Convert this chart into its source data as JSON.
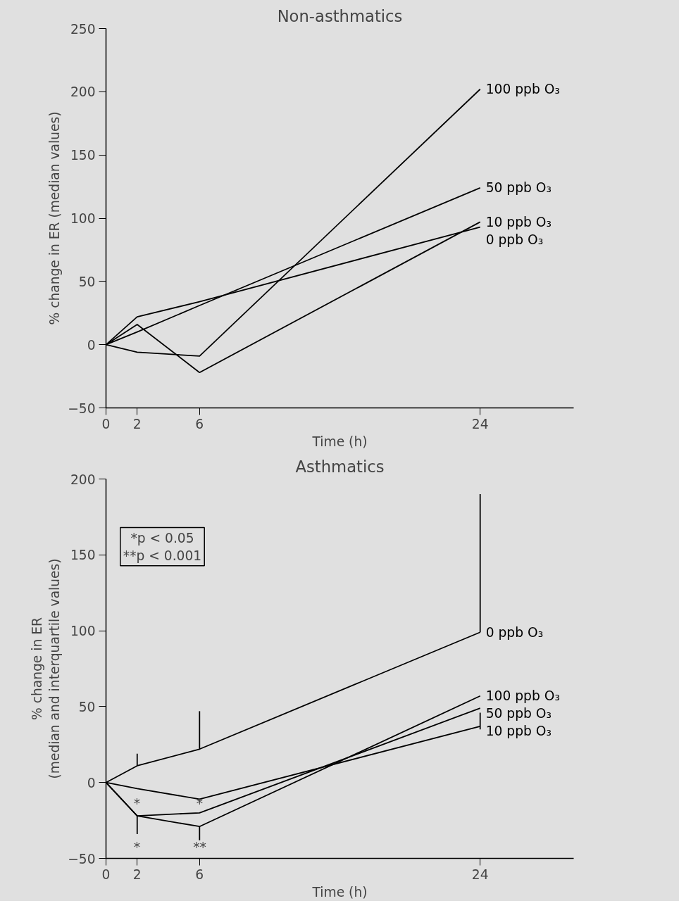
{
  "chart_data": [
    {
      "type": "line",
      "title": "Non-asthmatics",
      "xlabel": "Time (h)",
      "ylabel": "% change in ER (median values)",
      "x": [
        0,
        2,
        6,
        24
      ],
      "xlim": [
        0,
        30
      ],
      "xticks": [
        0,
        2,
        6,
        24
      ],
      "ylim": [
        -50,
        250
      ],
      "yticks": [
        {
          "value": -50,
          "label": "−50"
        },
        0,
        50,
        100,
        150,
        200,
        250
      ],
      "marker": "none",
      "line_style": "solid",
      "series": [
        {
          "name": "100 ppb O₃",
          "color": "#000000",
          "values": [
            0,
            -6,
            -9,
            202
          ]
        },
        {
          "name": "50 ppb O₃",
          "color": "#000000",
          "values": [
            0,
            10,
            31,
            124
          ]
        },
        {
          "name": "10 ppb O₃",
          "color": "#000000",
          "values": [
            0,
            16,
            -22,
            97
          ]
        },
        {
          "name": "0 ppb O₃",
          "color": "#000000",
          "values": [
            0,
            22,
            34,
            93
          ]
        }
      ]
    },
    {
      "type": "line",
      "title": "Asthmatics",
      "xlabel": "Time (h)",
      "ylabel": "% change in ER\n(median and interquartile values)",
      "x": [
        0,
        2,
        6,
        24
      ],
      "xlim": [
        0,
        30
      ],
      "xticks": [
        0,
        2,
        6,
        24
      ],
      "ylim": [
        -50,
        200
      ],
      "yticks": [
        {
          "value": -50,
          "label": "−50"
        },
        0,
        50,
        100,
        150,
        200
      ],
      "marker": "none",
      "line_style": "solid",
      "series": [
        {
          "name": "0 ppb O₃",
          "color": "#000000",
          "values": [
            0,
            11,
            22,
            99
          ],
          "errors": [
            null,
            [
              11,
              19
            ],
            [
              22,
              47
            ],
            [
              99,
              190
            ]
          ]
        },
        {
          "name": "100 ppb O₃",
          "color": "#000000",
          "values": [
            0,
            -22,
            -29,
            57
          ],
          "errors": [
            null,
            [
              -34,
              -22
            ],
            [
              -38,
              -29
            ],
            null
          ]
        },
        {
          "name": "50 ppb O₃",
          "color": "#000000",
          "values": [
            0,
            -22,
            -20,
            49
          ]
        },
        {
          "name": "10 ppb O₃",
          "color": "#000000",
          "values": [
            0,
            -4,
            -11,
            37
          ],
          "errors": [
            null,
            null,
            null,
            [
              35,
              46
            ]
          ]
        }
      ],
      "annotations": [
        "*p < 0.05\n**p < 0.001",
        "*",
        "*",
        "*",
        "**"
      ]
    }
  ]
}
